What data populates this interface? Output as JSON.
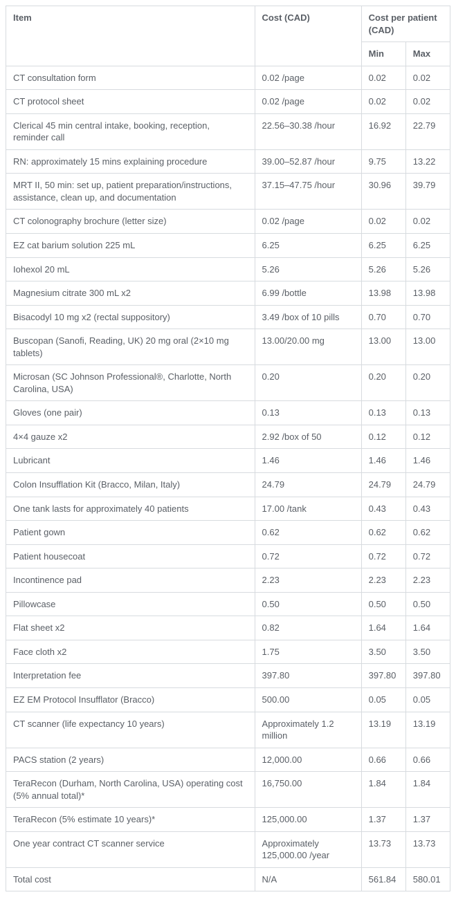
{
  "table": {
    "type": "table",
    "background_color": "#ffffff",
    "border_color": "#d7dbdf",
    "text_color": "#5a5f66",
    "header_fontweight": 600,
    "fontsize": 13,
    "column_widths_pct": [
      56,
      24,
      10,
      10
    ],
    "headers": {
      "item": "Item",
      "cost": "Cost (CAD)",
      "cpp": "Cost per patient (CAD)",
      "min": "Min",
      "max": "Max"
    },
    "rows": [
      {
        "item": "CT consultation form",
        "cost": "0.02 /page",
        "min": "0.02",
        "max": "0.02"
      },
      {
        "item": "CT protocol sheet",
        "cost": "0.02 /page",
        "min": "0.02",
        "max": "0.02"
      },
      {
        "item": "Clerical 45 min central intake, booking, reception, reminder call",
        "cost": "22.56–30.38 /hour",
        "min": "16.92",
        "max": "22.79"
      },
      {
        "item": "RN: approximately 15 mins explaining procedure",
        "cost": "39.00–52.87 /hour",
        "min": "9.75",
        "max": "13.22"
      },
      {
        "item": "MRT II, 50 min: set up, patient preparation/instructions, assistance, clean up, and documentation",
        "cost": "37.15–47.75 /hour",
        "min": "30.96",
        "max": "39.79"
      },
      {
        "item": "CT colonography brochure (letter size)",
        "cost": "0.02 /page",
        "min": "0.02",
        "max": "0.02"
      },
      {
        "item": "EZ cat barium solution 225 mL",
        "cost": "6.25",
        "min": "6.25",
        "max": "6.25"
      },
      {
        "item": "Iohexol 20 mL",
        "cost": "5.26",
        "min": "5.26",
        "max": "5.26"
      },
      {
        "item": "Magnesium citrate 300 mL x2",
        "cost": "6.99 /bottle",
        "min": "13.98",
        "max": "13.98"
      },
      {
        "item": "Bisacodyl 10 mg x2 (rectal suppository)",
        "cost": "3.49 /box of 10 pills",
        "min": "0.70",
        "max": "0.70"
      },
      {
        "item": "Buscopan (Sanofi, Reading, UK) 20 mg oral (2×10 mg tablets)",
        "cost": "13.00/20.00 mg",
        "min": "13.00",
        "max": "13.00"
      },
      {
        "item": "Microsan (SC Johnson Professional®, Charlotte, North Carolina, USA)",
        "cost": "0.20",
        "min": "0.20",
        "max": "0.20"
      },
      {
        "item": "Gloves (one pair)",
        "cost": "0.13",
        "min": "0.13",
        "max": "0.13"
      },
      {
        "item": "4×4 gauze x2",
        "cost": "2.92 /box of 50",
        "min": "0.12",
        "max": "0.12"
      },
      {
        "item": "Lubricant",
        "cost": "1.46",
        "min": "1.46",
        "max": "1.46"
      },
      {
        "item": "Colon Insufflation Kit (Bracco, Milan, Italy)",
        "cost": "24.79",
        "min": "24.79",
        "max": "24.79"
      },
      {
        "item": "One tank lasts for approximately 40 patients",
        "cost": "17.00 /tank",
        "min": "0.43",
        "max": "0.43"
      },
      {
        "item": "Patient gown",
        "cost": "0.62",
        "min": "0.62",
        "max": "0.62"
      },
      {
        "item": "Patient housecoat",
        "cost": "0.72",
        "min": "0.72",
        "max": "0.72"
      },
      {
        "item": "Incontinence pad",
        "cost": "2.23",
        "min": "2.23",
        "max": "2.23"
      },
      {
        "item": "Pillowcase",
        "cost": "0.50",
        "min": "0.50",
        "max": "0.50"
      },
      {
        "item": "Flat sheet x2",
        "cost": "0.82",
        "min": "1.64",
        "max": "1.64"
      },
      {
        "item": "Face cloth x2",
        "cost": "1.75",
        "min": "3.50",
        "max": "3.50"
      },
      {
        "item": "Interpretation fee",
        "cost": "397.80",
        "min": "397.80",
        "max": "397.80"
      },
      {
        "item": "EZ EM Protocol Insufflator (Bracco)",
        "cost": "500.00",
        "min": "0.05",
        "max": "0.05"
      },
      {
        "item": "CT scanner (life expectancy 10 years)",
        "cost": "Approximately 1.2 million",
        "min": "13.19",
        "max": "13.19"
      },
      {
        "item": "PACS station (2 years)",
        "cost": "12,000.00",
        "min": "0.66",
        "max": "0.66"
      },
      {
        "item": "TeraRecon (Durham, North Carolina, USA) operating cost (5% annual total)*",
        "cost": "16,750.00",
        "min": "1.84",
        "max": "1.84"
      },
      {
        "item": "TeraRecon (5% estimate 10 years)*",
        "cost": "125,000.00",
        "min": "1.37",
        "max": "1.37"
      },
      {
        "item": "One year contract CT scanner service",
        "cost": "Approximately 125,000.00 /year",
        "min": "13.73",
        "max": "13.73"
      },
      {
        "item": "Total cost",
        "cost": "N/A",
        "min": "561.84",
        "max": "580.01"
      }
    ]
  }
}
